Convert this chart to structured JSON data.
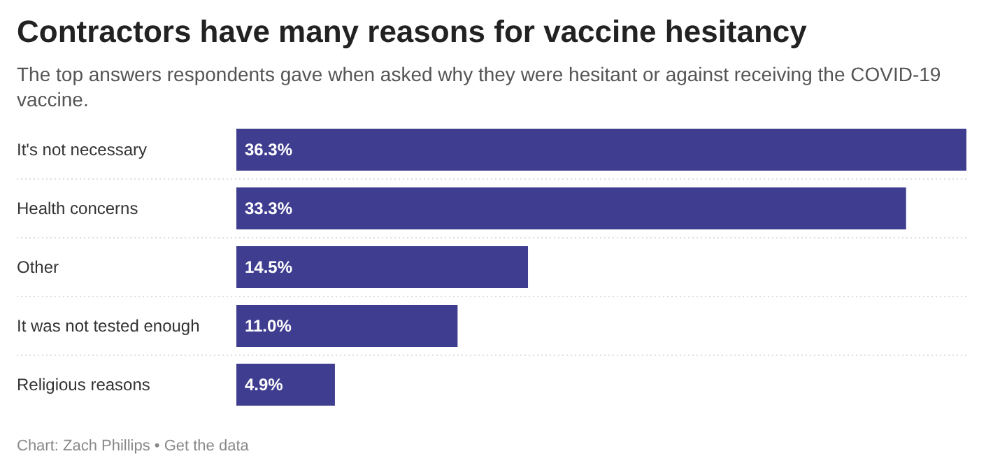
{
  "chart_data": {
    "type": "bar",
    "orientation": "horizontal",
    "title": "Contractors have many reasons for vaccine hesitancy",
    "subtitle": "The top answers respondents gave when asked why they were hesitant or against receiving the COVID-19 vaccine.",
    "categories": [
      "It's not necessary",
      "Health concerns",
      "Other",
      "It was not tested enough",
      "Religious reasons"
    ],
    "values": [
      36.3,
      33.3,
      14.5,
      11.0,
      4.9
    ],
    "value_labels": [
      "36.3%",
      "33.3%",
      "14.5%",
      "11.0%",
      "4.9%"
    ],
    "color": "#3f3d8f",
    "annotations": [
      "Chart: Zach Phillips • Get the data"
    ]
  }
}
